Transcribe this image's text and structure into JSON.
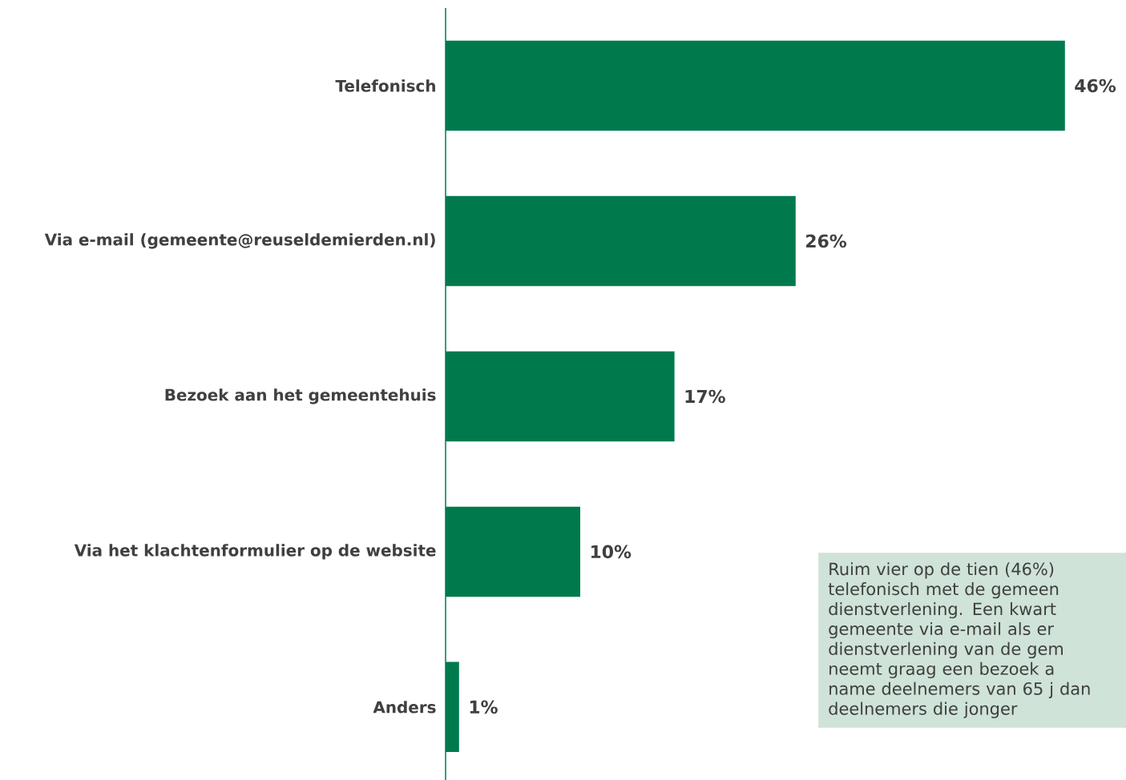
{
  "chart_data": {
    "type": "bar",
    "orientation": "horizontal",
    "categories": [
      "Telefonisch",
      "Via e-mail (gemeente@reuseldemierden.nl)",
      "Bezoek aan het gemeentehuis",
      "Via het klachtenformulier op de website",
      "Anders"
    ],
    "values": [
      46,
      26,
      17,
      10,
      1
    ],
    "value_labels": [
      "46%",
      "26%",
      "17%",
      "10%",
      "1%"
    ],
    "color": "#007a4d",
    "tick_labels": "y",
    "annotations": [
      "Ruim vier op de tien (46%) telefonisch met de gemeen dienstverlening. Een kwart gemeente via e-mail als er dienstverlening van de gem neemt graag een bezoek a name deelnemers van 65 j dan deelnemers die jonger"
    ]
  }
}
